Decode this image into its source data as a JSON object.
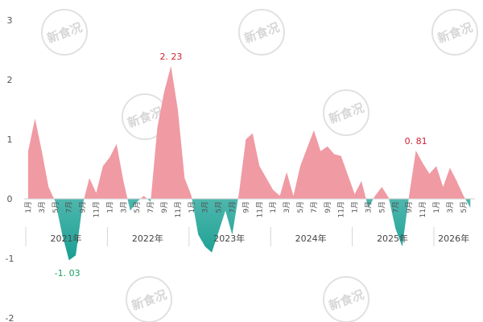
{
  "chart_data": {
    "type": "area",
    "ylim": [
      -2,
      3
    ],
    "yticks": [
      -2,
      -1,
      0,
      1,
      2,
      3
    ],
    "grid": false,
    "legend": "none",
    "colors": {
      "positive": "#f09aa4",
      "negative_dark": "#1a9e92",
      "negative_light": "#bfeeea"
    },
    "years": [
      {
        "label": "2021年",
        "span": [
          0,
          11
        ]
      },
      {
        "label": "2022年",
        "span": [
          12,
          23
        ]
      },
      {
        "label": "2023年",
        "span": [
          24,
          35
        ]
      },
      {
        "label": "2024年",
        "span": [
          36,
          47
        ]
      },
      {
        "label": "2025年",
        "span": [
          48,
          59
        ]
      },
      {
        "label": "2026年",
        "span": [
          60,
          65
        ]
      }
    ],
    "month_labels": [
      "1月",
      "3月",
      "5月",
      "7月",
      "9月",
      "11月"
    ],
    "month_label_months": [
      1,
      3,
      5,
      7,
      9,
      11
    ],
    "values": [
      0.8,
      1.35,
      0.8,
      0.2,
      -0.05,
      -0.6,
      -1.03,
      -0.95,
      -0.1,
      0.35,
      0.1,
      0.55,
      0.7,
      0.92,
      0.3,
      -0.2,
      -0.05,
      0.05,
      -0.05,
      1.2,
      1.8,
      2.23,
      1.5,
      0.35,
      0.05,
      -0.6,
      -0.8,
      -0.9,
      -0.55,
      -0.2,
      -0.6,
      0.1,
      1.0,
      1.1,
      0.55,
      0.35,
      0.15,
      0.05,
      0.45,
      0.05,
      0.55,
      0.85,
      1.15,
      0.8,
      0.88,
      0.75,
      0.72,
      0.4,
      0.08,
      0.3,
      -0.15,
      0.05,
      0.2,
      0.02,
      -0.5,
      -0.8,
      0.05,
      0.81,
      0.6,
      0.42,
      0.55,
      0.2,
      0.52,
      0.3,
      0.05,
      -0.15
    ],
    "annotations": [
      {
        "index": 21,
        "text": "2. 23",
        "color": "#cc2233"
      },
      {
        "index": 6,
        "text": "-1. 03",
        "color": "#1a9e60"
      },
      {
        "index": 57,
        "text": "0. 81",
        "color": "#cc2233"
      }
    ]
  },
  "watermark": {
    "text": "新食况"
  }
}
